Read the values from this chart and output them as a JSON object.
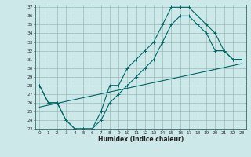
{
  "title": "",
  "xlabel": "Humidex (Indice chaleur)",
  "bg_color": "#cce8e8",
  "grid_color": "#99bbbb",
  "line_color": "#006666",
  "xlim": [
    -0.5,
    23.5
  ],
  "ylim": [
    23,
    37.3
  ],
  "xticks": [
    0,
    1,
    2,
    3,
    4,
    5,
    6,
    7,
    8,
    9,
    10,
    11,
    12,
    13,
    14,
    15,
    16,
    17,
    18,
    19,
    20,
    21,
    22,
    23
  ],
  "yticks": [
    23,
    24,
    25,
    26,
    27,
    28,
    29,
    30,
    31,
    32,
    33,
    34,
    35,
    36,
    37
  ],
  "line1_x": [
    0,
    1,
    2,
    3,
    4,
    5,
    6,
    7,
    8,
    9,
    10,
    11,
    12,
    13,
    14,
    15,
    16,
    17,
    18,
    19,
    20,
    21,
    22,
    23
  ],
  "line1_y": [
    28,
    26,
    26,
    24,
    23,
    23,
    23,
    25,
    28,
    28,
    30,
    31,
    32,
    33,
    35,
    37,
    37,
    37,
    36,
    35,
    34,
    32,
    31,
    31
  ],
  "line2_x": [
    0,
    1,
    2,
    3,
    4,
    5,
    6,
    7,
    8,
    9,
    10,
    11,
    12,
    13,
    14,
    15,
    16,
    17,
    18,
    19,
    20,
    21,
    22,
    23
  ],
  "line2_y": [
    28,
    26,
    26,
    24,
    23,
    23,
    23,
    24,
    26,
    27,
    28,
    29,
    30,
    31,
    33,
    35,
    36,
    36,
    35,
    34,
    32,
    32,
    31,
    31
  ],
  "line3_x": [
    0,
    23
  ],
  "line3_y": [
    25.5,
    30.5
  ]
}
